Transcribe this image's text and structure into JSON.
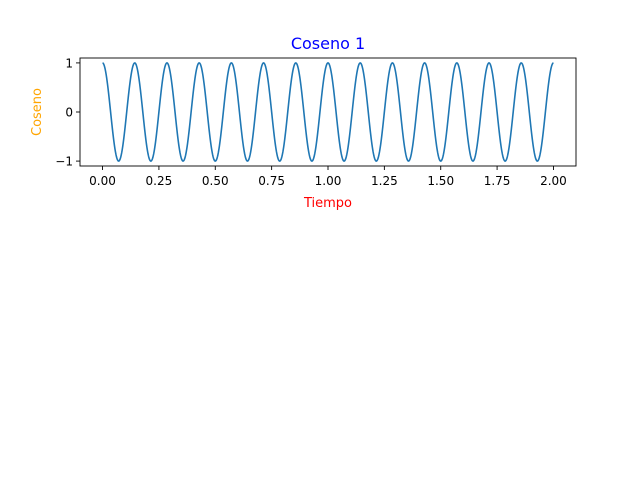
{
  "chart_data": {
    "type": "line",
    "title": "Coseno 1",
    "xlabel": "Tiempo",
    "ylabel": "Coseno",
    "colors": {
      "title": "#0000ff",
      "xlabel": "#ff0000",
      "ylabel": "#ffa500",
      "line": "#1f77b4"
    },
    "xlim": [
      -0.1,
      2.1
    ],
    "ylim": [
      -1.1,
      1.1
    ],
    "x_ticks": [
      0,
      0.25,
      0.5,
      0.75,
      1.0,
      1.25,
      1.5,
      1.75,
      2.0
    ],
    "x_tick_labels": [
      "0.00",
      "0.25",
      "0.50",
      "0.75",
      "1.00",
      "1.25",
      "1.50",
      "1.75",
      "2.00"
    ],
    "y_ticks": [
      1,
      0,
      -1
    ],
    "y_tick_labels": [
      "1",
      "0",
      "−1"
    ],
    "grid": false,
    "series": [
      {
        "function": "cos(2*pi*f*t)",
        "frequency": 7,
        "x_range": [
          0,
          2
        ],
        "peaks_x": [
          0,
          0.143,
          0.286,
          0.429,
          0.571,
          0.714,
          0.857,
          1.0,
          1.143,
          1.286,
          1.429,
          1.571,
          1.714,
          1.857,
          2.0
        ],
        "y_max": 1,
        "y_min": -1
      }
    ]
  }
}
